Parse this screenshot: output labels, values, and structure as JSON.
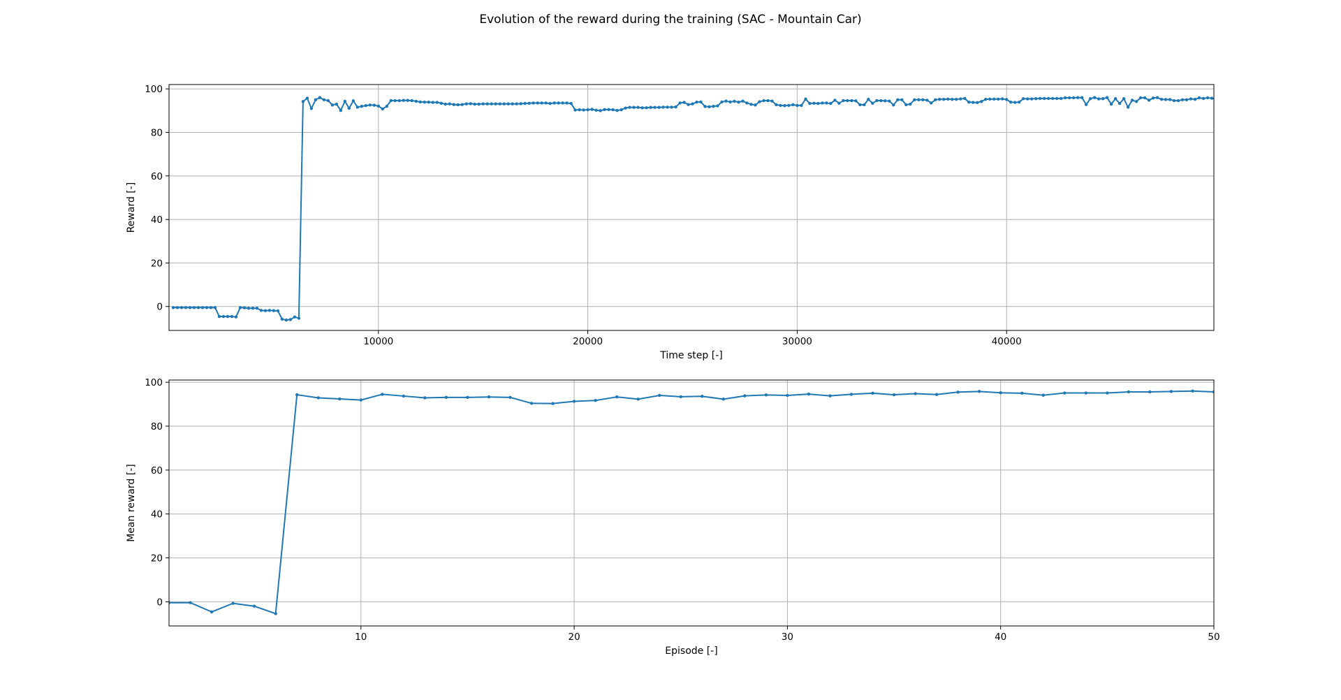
{
  "title": "Evolution of the reward during the training (SAC - Mountain Car)",
  "colors": {
    "series": "#1f77b4",
    "grid": "#b0b0b0"
  },
  "chart_data": [
    {
      "type": "line",
      "xlabel": "Time step [-]",
      "ylabel": "Reward [-]",
      "xlim": [
        0,
        49900
      ],
      "ylim": [
        -11,
        102
      ],
      "xticks": [
        10000,
        20000,
        30000,
        40000
      ],
      "yticks": [
        0,
        20,
        40,
        60,
        80,
        100
      ],
      "grid": true,
      "x_step": 200,
      "y": [
        -0.5,
        -0.5,
        -0.5,
        -0.5,
        -0.5,
        -0.5,
        -0.5,
        -0.5,
        -0.5,
        -0.5,
        -0.5,
        -4.6,
        -4.6,
        -4.6,
        -4.6,
        -4.8,
        -0.5,
        -0.6,
        -0.8,
        -0.8,
        -0.8,
        -1.8,
        -1.9,
        -1.8,
        -1.9,
        -2.0,
        -5.8,
        -6.2,
        -6.0,
        -4.8,
        -5.4,
        94.2,
        95.7,
        91.0,
        95.0,
        96.0,
        95.0,
        94.6,
        92.6,
        93.0,
        90.1,
        94.3,
        91.1,
        94.5,
        91.6,
        92.0,
        92.3,
        92.6,
        92.5,
        92.1,
        90.8,
        92.0,
        94.6,
        94.6,
        94.6,
        94.7,
        94.7,
        94.6,
        94.3,
        94.0,
        93.9,
        93.9,
        93.8,
        93.8,
        93.4,
        93.0,
        93.1,
        92.8,
        92.7,
        92.8,
        93.1,
        93.2,
        93.0,
        93.0,
        93.1,
        93.1,
        93.1,
        93.1,
        93.1,
        93.1,
        93.1,
        93.1,
        93.1,
        93.2,
        93.3,
        93.4,
        93.5,
        93.5,
        93.5,
        93.5,
        93.3,
        93.5,
        93.5,
        93.5,
        93.5,
        93.3,
        90.3,
        90.4,
        90.3,
        90.4,
        90.6,
        90.2,
        90.0,
        90.5,
        90.5,
        90.4,
        90.1,
        90.4,
        91.2,
        91.5,
        91.5,
        91.5,
        91.3,
        91.3,
        91.5,
        91.5,
        91.5,
        91.6,
        91.6,
        91.6,
        91.7,
        93.5,
        93.8,
        92.8,
        93.1,
        93.9,
        94.0,
        91.9,
        91.8,
        92.0,
        92.2,
        94.0,
        94.4,
        94.0,
        94.3,
        93.9,
        94.4,
        93.5,
        92.9,
        92.6,
        94.1,
        94.6,
        94.6,
        94.4,
        92.7,
        92.4,
        92.3,
        92.4,
        92.7,
        92.4,
        92.4,
        95.3,
        93.3,
        93.4,
        93.3,
        93.5,
        93.5,
        93.3,
        94.8,
        93.4,
        94.6,
        94.6,
        94.6,
        94.5,
        92.7,
        92.7,
        95.2,
        93.4,
        94.6,
        94.6,
        94.5,
        94.4,
        92.6,
        95.0,
        95.0,
        92.7,
        93.0,
        95.0,
        95.0,
        95.0,
        94.8,
        93.5,
        95.0,
        95.2,
        95.2,
        95.3,
        95.2,
        95.2,
        95.4,
        95.6,
        93.9,
        93.8,
        93.7,
        94.2,
        95.2,
        95.3,
        95.3,
        95.3,
        95.4,
        95.1,
        93.9,
        93.8,
        93.9,
        95.5,
        95.4,
        95.4,
        95.5,
        95.6,
        95.6,
        95.6,
        95.6,
        95.6,
        95.6,
        95.9,
        95.9,
        95.9,
        96.0,
        96.0,
        92.8,
        95.5,
        96.0,
        95.4,
        95.5,
        96.0,
        93.0,
        95.5,
        93.3,
        95.5,
        91.6,
        94.8,
        94.2,
        95.9,
        95.9,
        94.8,
        95.8,
        96.0,
        95.2,
        95.1,
        95.1,
        94.6,
        94.6,
        95.0,
        95.0,
        95.4,
        95.2,
        95.9,
        95.6,
        95.9,
        95.7,
        95.4,
        95.5,
        95.8,
        95.3,
        95.6,
        95.6,
        95.6,
        95.8,
        96.0,
        96.0,
        96.0,
        96.0,
        96.0,
        96.1,
        96.3,
        96.2,
        95.9,
        96.2,
        96.4,
        96.4,
        96.3,
        94.9,
        95.5
      ]
    },
    {
      "type": "line",
      "xlabel": "Episode [-]",
      "ylabel": "Mean reward [-]",
      "xlim": [
        1,
        50
      ],
      "ylim": [
        -11,
        101
      ],
      "xticks": [
        10,
        20,
        30,
        40,
        50
      ],
      "yticks": [
        0,
        20,
        40,
        60,
        80,
        100
      ],
      "grid": true,
      "x_start": 1,
      "y": [
        -0.4,
        -0.4,
        -4.6,
        -0.7,
        -2.0,
        -5.4,
        94.3,
        92.9,
        92.4,
        91.9,
        94.5,
        93.7,
        92.9,
        93.1,
        93.1,
        93.3,
        93.1,
        90.4,
        90.3,
        91.3,
        91.7,
        93.3,
        92.3,
        94.0,
        93.4,
        93.6,
        92.3,
        93.8,
        94.2,
        94.0,
        94.6,
        93.8,
        94.5,
        95.0,
        94.3,
        94.8,
        94.4,
        95.5,
        95.8,
        95.2,
        95.0,
        94.1,
        95.1,
        95.1,
        95.1,
        95.6,
        95.6,
        95.8,
        96.0,
        95.6
      ]
    }
  ]
}
